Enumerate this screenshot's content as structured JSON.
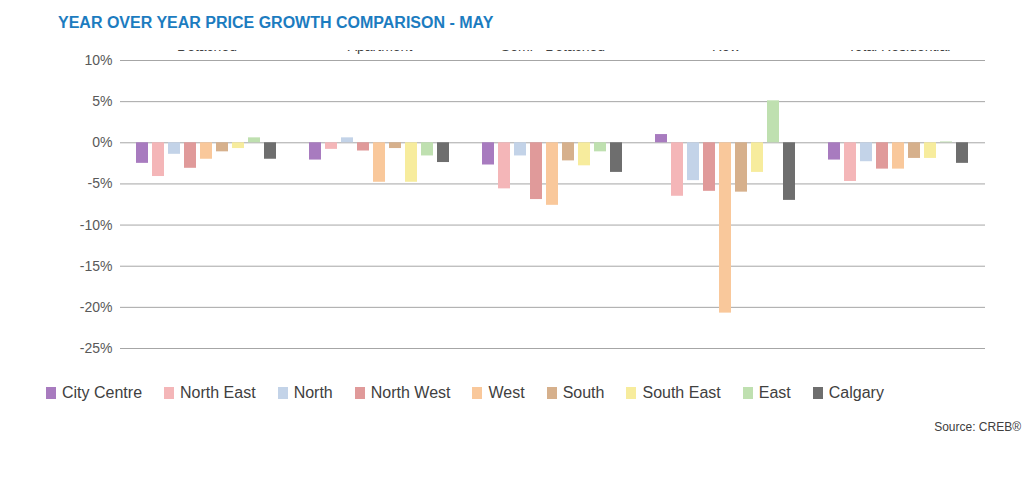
{
  "chart_data": {
    "type": "bar",
    "title": "YEAR OVER YEAR PRICE GROWTH COMPARISON -  MAY",
    "source": "Source: CREB®",
    "categories": [
      "Detached",
      "Apartment",
      "Semi - Detached",
      "Row",
      "Total Residential"
    ],
    "series": [
      {
        "name": "City Centre",
        "color": "#a87bbf",
        "values": [
          -2.5,
          -2.1,
          -2.7,
          1.0,
          -2.1
        ]
      },
      {
        "name": "North East",
        "color": "#f4b6b8",
        "values": [
          -4.1,
          -0.8,
          -5.6,
          -6.5,
          -4.7
        ]
      },
      {
        "name": "North",
        "color": "#c3d3e8",
        "values": [
          -1.4,
          0.6,
          -1.6,
          -4.6,
          -2.3
        ]
      },
      {
        "name": "North West",
        "color": "#e09a9a",
        "values": [
          -3.1,
          -1.0,
          -6.9,
          -5.9,
          -3.2
        ]
      },
      {
        "name": "West",
        "color": "#f9c89b",
        "values": [
          -2.0,
          -4.8,
          -7.6,
          -20.7,
          -3.2
        ]
      },
      {
        "name": "South",
        "color": "#d6b08c",
        "values": [
          -1.1,
          -0.7,
          -2.2,
          -6.0,
          -1.9
        ]
      },
      {
        "name": "South East",
        "color": "#f7ec9d",
        "values": [
          -0.7,
          -4.8,
          -2.8,
          -3.6,
          -1.9
        ]
      },
      {
        "name": "East",
        "color": "#bfe0b0",
        "values": [
          0.6,
          -1.6,
          -1.1,
          5.1,
          0.1
        ]
      },
      {
        "name": "Calgary",
        "color": "#6e6e6e",
        "values": [
          -2.0,
          -2.4,
          -3.6,
          -7.0,
          -2.5
        ]
      }
    ],
    "ylim": [
      -25,
      10
    ],
    "yticks": [
      {
        "value": -25,
        "label": "-25%"
      },
      {
        "value": -20,
        "label": "-20%"
      },
      {
        "value": -15,
        "label": "-15%"
      },
      {
        "value": -10,
        "label": "-10%"
      },
      {
        "value": -5,
        "label": "-5%"
      },
      {
        "value": 0,
        "label": "0%"
      },
      {
        "value": 5,
        "label": "5%"
      },
      {
        "value": 10,
        "label": "10%"
      }
    ],
    "grid": true,
    "legend": "bottom",
    "data_labels": false
  }
}
